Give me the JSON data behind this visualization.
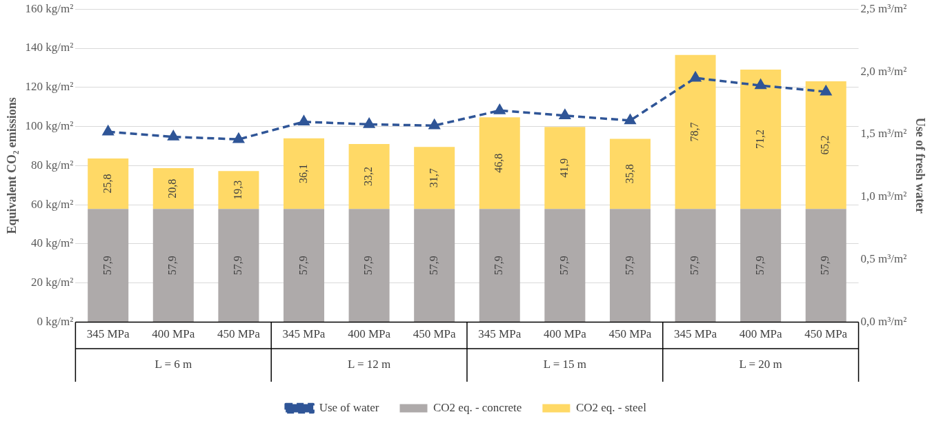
{
  "chart_data": {
    "type": "bar",
    "stacked": true,
    "categories": [
      "345 MPa",
      "400 MPa",
      "450 MPa",
      "345 MPa",
      "400 MPa",
      "450 MPa",
      "345 MPa",
      "400 MPa",
      "450 MPa",
      "345 MPa",
      "400 MPa",
      "450 MPa"
    ],
    "annotations": [
      "L = 6 m",
      "L = 12 m",
      "L = 15 m",
      "L = 20 m"
    ],
    "ylabel": "Equivalent CO₂ emissions",
    "y2label": "Use of fresh water",
    "ylim": [
      0,
      160
    ],
    "yticks": [
      {
        "value": 0,
        "label": "0 kg/m²"
      },
      {
        "value": 20,
        "label": "20 kg/m²"
      },
      {
        "value": 40,
        "label": "40 kg/m²"
      },
      {
        "value": 60,
        "label": "60 kg/m²"
      },
      {
        "value": 80,
        "label": "80 kg/m²"
      },
      {
        "value": 100,
        "label": "100 kg/m²"
      },
      {
        "value": 120,
        "label": "120 kg/m²"
      },
      {
        "value": 140,
        "label": "140 kg/m²"
      },
      {
        "value": 160,
        "label": "160 kg/m²"
      }
    ],
    "y2lim": [
      0,
      2.5
    ],
    "y2ticks": [
      {
        "value": 0,
        "label": "0,0 m³/m²"
      },
      {
        "value": 0.5,
        "label": "0,5 m³/m²"
      },
      {
        "value": 1,
        "label": "1,0 m³/m²"
      },
      {
        "value": 1.5,
        "label": "1,5 m³/m²"
      },
      {
        "value": 2,
        "label": "2,0 m³/m²"
      },
      {
        "value": 2.5,
        "label": "2,5 m³/m²"
      }
    ],
    "grid": "y",
    "legend": "bottom",
    "series": [
      {
        "name": "CO2 eq. - concrete",
        "color": "#aeaaaa",
        "values": [
          57.9,
          57.9,
          57.9,
          57.9,
          57.9,
          57.9,
          57.9,
          57.9,
          57.9,
          57.9,
          57.9,
          57.9
        ],
        "value_labels": [
          "57,9",
          "57,9",
          "57,9",
          "57,9",
          "57,9",
          "57,9",
          "57,9",
          "57,9",
          "57,9",
          "57,9",
          "57,9",
          "57,9"
        ]
      },
      {
        "name": "CO2 eq. - steel",
        "color": "#ffd966",
        "values": [
          25.8,
          20.8,
          19.3,
          36.1,
          33.2,
          31.7,
          46.8,
          41.9,
          35.8,
          78.7,
          71.2,
          65.2
        ],
        "value_labels": [
          "25,8",
          "20,8",
          "19,3",
          "36,1",
          "33,2",
          "31,7",
          "46,8",
          "41,9",
          "35,8",
          "78,7",
          "71,2",
          "65,2"
        ]
      },
      {
        "name": "Use of water",
        "type": "line",
        "axis": "y2",
        "color": "#2f5597",
        "marker": "triangle",
        "line_style": "dashed",
        "values": [
          1.52,
          1.48,
          1.46,
          1.6,
          1.58,
          1.57,
          1.69,
          1.65,
          1.61,
          1.95,
          1.89,
          1.84
        ]
      }
    ]
  }
}
